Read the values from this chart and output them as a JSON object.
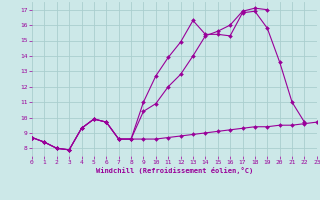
{
  "xlabel": "Windchill (Refroidissement éolien,°C)",
  "bg_color": "#cce8e8",
  "grid_color": "#aacece",
  "line_color": "#990099",
  "xlim": [
    0,
    23
  ],
  "ylim": [
    7.5,
    17.5
  ],
  "xticks": [
    0,
    1,
    2,
    3,
    4,
    5,
    6,
    7,
    8,
    9,
    10,
    11,
    12,
    13,
    14,
    15,
    16,
    17,
    18,
    19,
    20,
    21,
    22,
    23
  ],
  "yticks": [
    8,
    9,
    10,
    11,
    12,
    13,
    14,
    15,
    16,
    17
  ],
  "line1_x": [
    0,
    1,
    2,
    3,
    4,
    5,
    6,
    7,
    8,
    9,
    10,
    11,
    12,
    13,
    14,
    15,
    16,
    17,
    18,
    19,
    20,
    21,
    22,
    23
  ],
  "line1_y": [
    8.7,
    8.4,
    8.0,
    7.9,
    9.3,
    9.9,
    9.7,
    8.6,
    8.6,
    8.6,
    8.6,
    8.7,
    8.8,
    8.9,
    9.0,
    9.1,
    9.2,
    9.3,
    9.4,
    9.4,
    9.5,
    9.5,
    9.6,
    9.7
  ],
  "line2_x": [
    0,
    1,
    2,
    3,
    4,
    5,
    6,
    7,
    8,
    9,
    10,
    11,
    12,
    13,
    14,
    15,
    16,
    17,
    18,
    19,
    20,
    21,
    22
  ],
  "line2_y": [
    8.7,
    8.4,
    8.0,
    7.9,
    9.3,
    9.9,
    9.7,
    8.6,
    8.6,
    11.0,
    12.7,
    13.9,
    14.9,
    16.3,
    15.4,
    15.4,
    15.3,
    16.8,
    16.9,
    15.8,
    13.6,
    11.0,
    9.7
  ],
  "line3_x": [
    0,
    1,
    2,
    3,
    4,
    5,
    6,
    7,
    8,
    9,
    10,
    11,
    12,
    13,
    14,
    15,
    16,
    17,
    18,
    19
  ],
  "line3_y": [
    8.7,
    8.4,
    8.0,
    7.9,
    9.3,
    9.9,
    9.7,
    8.6,
    8.6,
    10.4,
    10.9,
    12.0,
    12.8,
    14.0,
    15.3,
    15.6,
    16.0,
    16.9,
    17.1,
    17.0
  ]
}
